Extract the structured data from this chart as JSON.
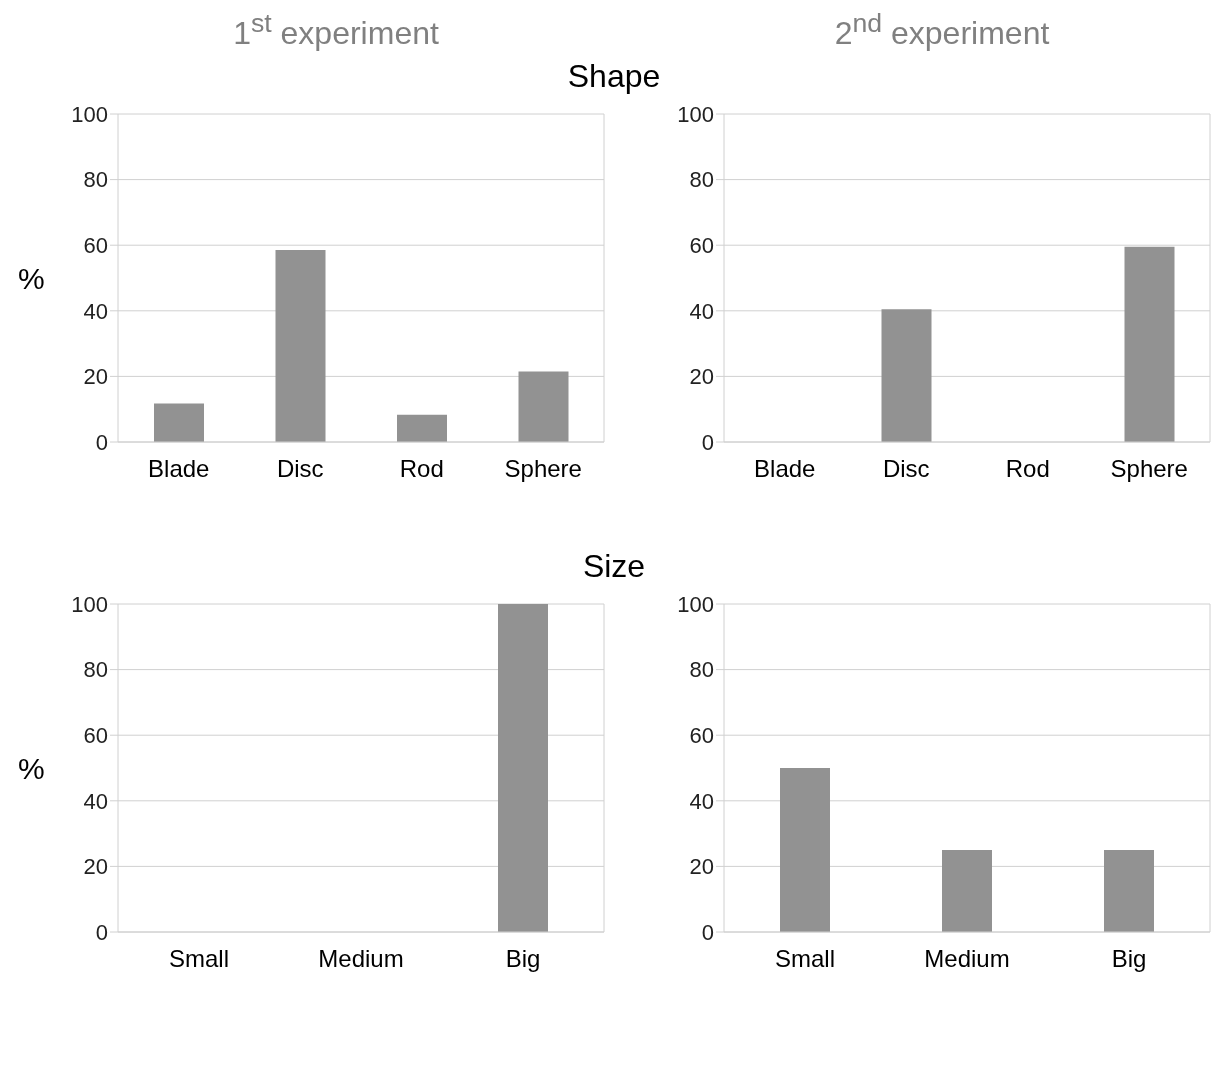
{
  "chart_data": [
    {
      "type": "bar",
      "title": "1$^{st}$ experiment",
      "subtitle": "Shape",
      "ylabel": "%",
      "categories": [
        "Blade",
        "Disc",
        "Rod",
        "Sphere"
      ],
      "values": [
        11.7,
        58.5,
        8.3,
        21.5
      ],
      "color": "#929292",
      "ylim": [
        0,
        100
      ],
      "yticks": [
        0,
        20,
        40,
        60,
        80,
        100
      ],
      "grid": "y"
    },
    {
      "type": "bar",
      "title": "2$^{nd}$ experiment",
      "categories": [
        "Blade",
        "Disc",
        "Rod",
        "Sphere"
      ],
      "values": [
        0,
        40.5,
        0,
        59.5
      ],
      "color": "#929292",
      "ylim": [
        0,
        100
      ],
      "yticks": [
        0,
        20,
        40,
        60,
        80,
        100
      ],
      "grid": "y"
    },
    {
      "type": "bar",
      "subtitle": "Size",
      "ylabel": "%",
      "categories": [
        "Small",
        "Medium",
        "Big"
      ],
      "values": [
        0,
        0,
        100
      ],
      "color": "#929292",
      "ylim": [
        0,
        100
      ],
      "yticks": [
        0,
        20,
        40,
        60,
        80,
        100
      ],
      "grid": "y"
    },
    {
      "type": "bar",
      "categories": [
        "Small",
        "Medium",
        "Big"
      ],
      "values": [
        50,
        25,
        25
      ],
      "color": "#929292",
      "ylim": [
        0,
        100
      ],
      "yticks": [
        0,
        20,
        40,
        60,
        80,
        100
      ],
      "grid": "y"
    }
  ]
}
